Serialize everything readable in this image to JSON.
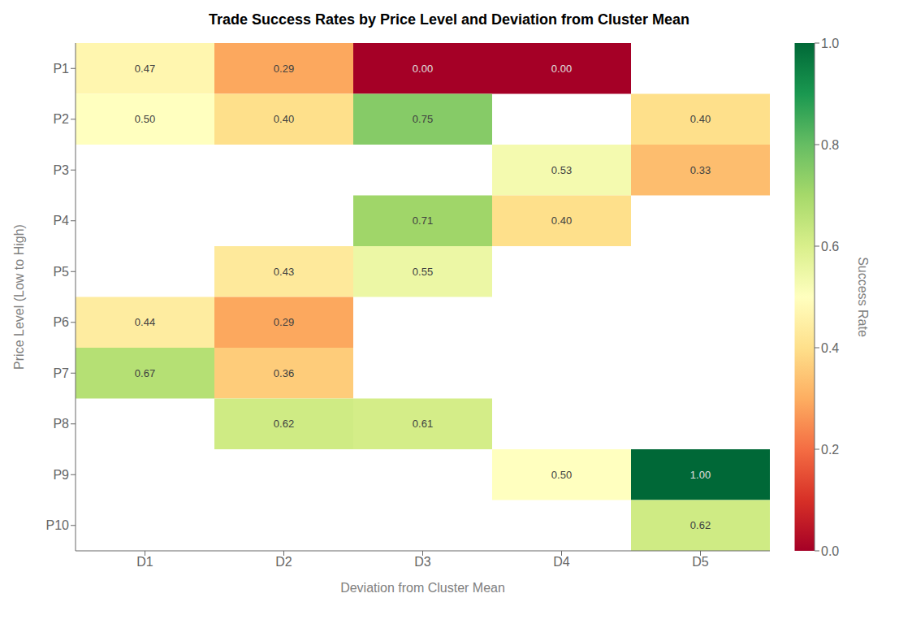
{
  "chart_data": {
    "type": "heatmap",
    "title": "Trade Success Rates by Price Level and Deviation from Cluster Mean",
    "x_label": "Deviation from Cluster Mean",
    "y_label": "Price Level (Low to High)",
    "x_categories": [
      "D1",
      "D2",
      "D3",
      "D4",
      "D5"
    ],
    "y_categories": [
      "P1",
      "P2",
      "P3",
      "P4",
      "P5",
      "P6",
      "P7",
      "P8",
      "P9",
      "P10"
    ],
    "values": [
      [
        0.47,
        0.29,
        0.0,
        0.0,
        null
      ],
      [
        0.5,
        0.4,
        0.75,
        null,
        0.4
      ],
      [
        null,
        null,
        null,
        0.53,
        0.33
      ],
      [
        null,
        null,
        0.71,
        0.4,
        null
      ],
      [
        null,
        0.43,
        0.55,
        null,
        null
      ],
      [
        0.44,
        0.29,
        null,
        null,
        null
      ],
      [
        0.67,
        0.36,
        null,
        null,
        null
      ],
      [
        null,
        0.62,
        0.61,
        null,
        null
      ],
      [
        null,
        null,
        null,
        0.5,
        1.0
      ],
      [
        null,
        null,
        null,
        null,
        0.62
      ]
    ],
    "value_labels": [
      [
        "0.47",
        "0.29",
        "0.00",
        "0.00",
        null
      ],
      [
        "0.50",
        "0.40",
        "0.75",
        null,
        "0.40"
      ],
      [
        null,
        null,
        null,
        "0.53",
        "0.33"
      ],
      [
        null,
        null,
        "0.71",
        "0.40",
        null
      ],
      [
        null,
        "0.43",
        "0.55",
        null,
        null
      ],
      [
        "0.44",
        "0.29",
        null,
        null,
        null
      ],
      [
        "0.67",
        "0.36",
        null,
        null,
        null
      ],
      [
        null,
        "0.62",
        "0.61",
        null,
        null
      ],
      [
        null,
        null,
        null,
        "0.50",
        "1.00"
      ],
      [
        null,
        null,
        null,
        null,
        "0.62"
      ]
    ],
    "data_labels": true,
    "colorbar": {
      "label": "Success Rate",
      "range": [
        0.0,
        1.0
      ],
      "ticks": [
        {
          "value": 0.0,
          "label": "0.0"
        },
        {
          "value": 0.2,
          "label": "0.2"
        },
        {
          "value": 0.4,
          "label": "0.4"
        },
        {
          "value": 0.6,
          "label": "0.6"
        },
        {
          "value": 0.8,
          "label": "0.8"
        },
        {
          "value": 1.0,
          "label": "1.0"
        }
      ]
    }
  }
}
